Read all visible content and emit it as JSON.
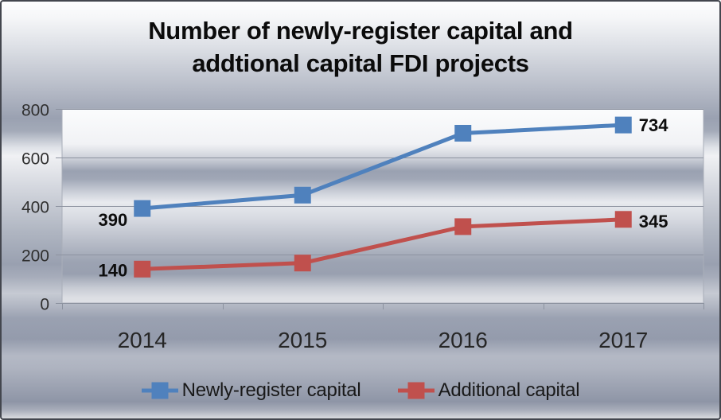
{
  "title": {
    "line1": "Number of newly-register capital and",
    "line2": "addtional capital FDI projects"
  },
  "chart_data": {
    "type": "line",
    "title": "Number of newly-register capital and addtional capital FDI projects",
    "categories": [
      "2014",
      "2015",
      "2016",
      "2017"
    ],
    "series": [
      {
        "name": "Newly-register capital",
        "color": "#4f81bd",
        "values": [
          390,
          445,
          700,
          734
        ],
        "point_labels": [
          {
            "index": 0,
            "text": "390",
            "side": "left",
            "dy": 14
          },
          {
            "index": 3,
            "text": "734",
            "side": "right",
            "dy": 0
          }
        ]
      },
      {
        "name": "Additional capital",
        "color": "#c0504d",
        "values": [
          140,
          165,
          315,
          345
        ],
        "point_labels": [
          {
            "index": 0,
            "text": "140",
            "side": "left",
            "dy": 1
          },
          {
            "index": 3,
            "text": "345",
            "side": "right",
            "dy": 2
          }
        ]
      }
    ],
    "ylim": [
      0,
      800
    ],
    "yticks": [
      0,
      200,
      400,
      600,
      800
    ],
    "grid": true,
    "legend_position": "bottom",
    "marker": "square"
  },
  "colors": {
    "gridline": "#8d93a0",
    "plot_border": "#a9aeb9",
    "axis_text": "#2f2f2f",
    "data_label_text": "#0d0d0d"
  }
}
